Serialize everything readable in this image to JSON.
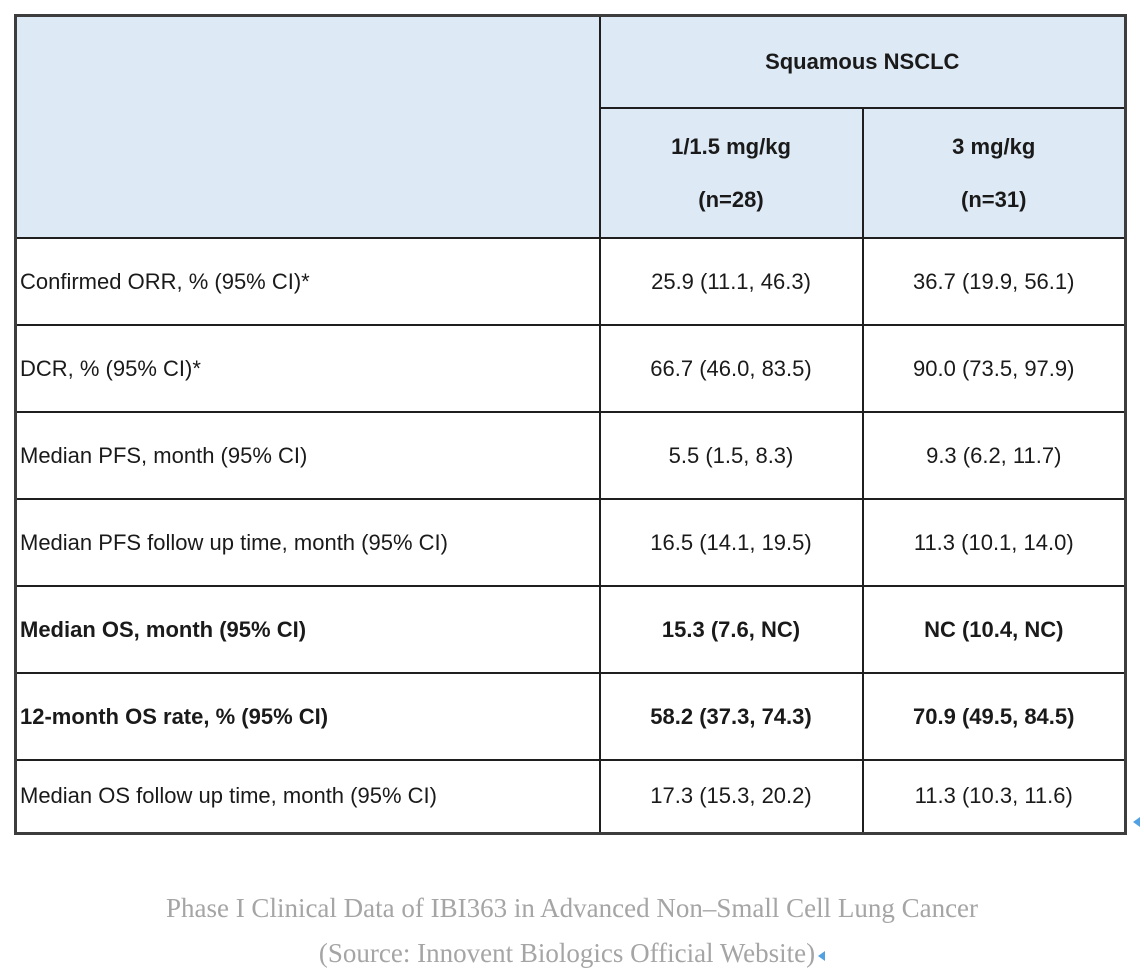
{
  "table": {
    "header": {
      "group_label": "Squamous NSCLC",
      "columns": [
        {
          "dose": "1/1.5 mg/kg",
          "n": "(n=28)"
        },
        {
          "dose": "3 mg/kg",
          "n": "(n=31)"
        }
      ]
    },
    "rows": [
      {
        "label": "Confirmed ORR, % (95% CI)*",
        "col1": "25.9 (11.1, 46.3)",
        "col2": "36.7 (19.9, 56.1)",
        "bold": false
      },
      {
        "label": "DCR, % (95% CI)*",
        "col1": "66.7 (46.0, 83.5)",
        "col2": "90.0 (73.5, 97.9)",
        "bold": false
      },
      {
        "label": "Median PFS, month (95% CI)",
        "col1": "5.5 (1.5, 8.3)",
        "col2": "9.3 (6.2, 11.7)",
        "bold": false
      },
      {
        "label": "Median PFS follow up time, month (95% CI)",
        "col1": "16.5 (14.1, 19.5)",
        "col2": "11.3 (10.1, 14.0)",
        "bold": false
      },
      {
        "label": "Median OS, month (95% CI)",
        "col1": "15.3 (7.6, NC)",
        "col2": "NC (10.4, NC)",
        "bold": true
      },
      {
        "label": "12-month OS rate, % (95% CI)",
        "col1": "58.2 (37.3, 74.3)",
        "col2": "70.9 (49.5, 84.5)",
        "bold": true
      },
      {
        "label": "Median OS follow up time, month (95% CI)",
        "col1": "17.3 (15.3, 20.2)",
        "col2": "11.3 (10.3, 11.6)",
        "bold": false
      }
    ]
  },
  "caption": {
    "line1": "Phase I Clinical Data of IBI363 in Advanced Non–Small Cell Lung Cancer",
    "line2": "(Source: Innovent Biologics Official Website)"
  },
  "colors": {
    "header_bg": "#dde9f5",
    "border_outer": "#3d3d3d",
    "border_inner": "#1f1f1f",
    "caption_text": "#a5a5a5",
    "anchor_mark_blue": "#52a1e3"
  }
}
